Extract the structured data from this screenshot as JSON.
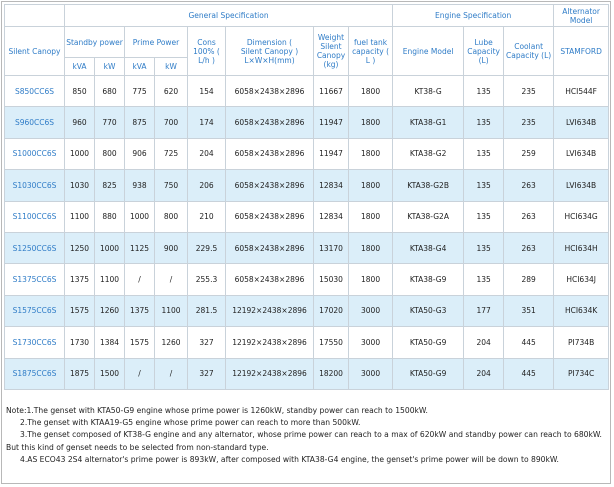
{
  "table": {
    "group_headers": [
      "General Specification",
      "Engine Specification",
      "Alternator Model"
    ],
    "column_headers": [
      "Silent Canopy",
      "Standby power",
      "Prime Power",
      "Cons 100% ( L/h )",
      "Dimension ( Silent Canopy ) L×W×H(mm)",
      "Weight Silent Canopy (kg)",
      "fuel tank capacity ( L )",
      "Engine Model",
      "Lube Capacity (L)",
      "Coolant Capacity (L)",
      "STAMFORD"
    ],
    "sub_headers": [
      "kVA",
      "kW",
      "kVA",
      "kW"
    ],
    "rows": [
      [
        "S850CC6S",
        "850",
        "680",
        "775",
        "620",
        "154",
        "6058×2438×2896",
        "11667",
        "1800",
        "KT38-G",
        "135",
        "235",
        "HCI544F"
      ],
      [
        "S960CC6S",
        "960",
        "770",
        "875",
        "700",
        "174",
        "6058×2438×2896",
        "11947",
        "1800",
        "KTA38-G1",
        "135",
        "235",
        "LVI634B"
      ],
      [
        "S1000CC6S",
        "1000",
        "800",
        "906",
        "725",
        "204",
        "6058×2438×2896",
        "11947",
        "1800",
        "KTA38-G2",
        "135",
        "259",
        "LVI634B"
      ],
      [
        "S1030CC6S",
        "1030",
        "825",
        "938",
        "750",
        "206",
        "6058×2438×2896",
        "12834",
        "1800",
        "KTA38-G2B",
        "135",
        "263",
        "LVI634B"
      ],
      [
        "S1100CC6S",
        "1100",
        "880",
        "1000",
        "800",
        "210",
        "6058×2438×2896",
        "12834",
        "1800",
        "KTA38-G2A",
        "135",
        "263",
        "HCI634G"
      ],
      [
        "S1250CC6S",
        "1250",
        "1000",
        "1125",
        "900",
        "229.5",
        "6058×2438×2896",
        "13170",
        "1800",
        "KTA38-G4",
        "135",
        "263",
        "HCI634H"
      ],
      [
        "S1375CC6S",
        "1375",
        "1100",
        "/",
        "/",
        "255.3",
        "6058×2438×2896",
        "15030",
        "1800",
        "KTA38-G9",
        "135",
        "289",
        "HCI634J"
      ],
      [
        "S1575CC6S",
        "1575",
        "1260",
        "1375",
        "1100",
        "281.5",
        "12192×2438×2896",
        "17020",
        "3000",
        "KTA50-G3",
        "177",
        "351",
        "HCI634K"
      ],
      [
        "S1730CC6S",
        "1730",
        "1384",
        "1575",
        "1260",
        "327",
        "12192×2438×2896",
        "17550",
        "3000",
        "KTA50-G9",
        "204",
        "445",
        "PI734B"
      ],
      [
        "S1875CC6S",
        "1875",
        "1500",
        "/",
        "/",
        "327",
        "12192×2438×2896",
        "18200",
        "3000",
        "KTA50-G9",
        "204",
        "445",
        "PI734C"
      ]
    ]
  },
  "notes": [
    "Note:1.The genset with KTA50-G9 engine whose prime power is 1260kW, standby power can reach to 1500kW.",
    "2.The genset with KTAA19-G5 engine whose prime power can reach to more than 500kW.",
    "3.The genset composed of KT38-G engine and any alternator, whose prime power can reach to a max of 620kW and standby power can reach to 680kW.",
    "But this kind of genset needs to be selected from non-standard type.",
    "4.AS ECO43 2S4 alternator's prime power is 893kW, after composed with KTA38-G4 engine, the genset's prime power will be down to 890kW."
  ]
}
